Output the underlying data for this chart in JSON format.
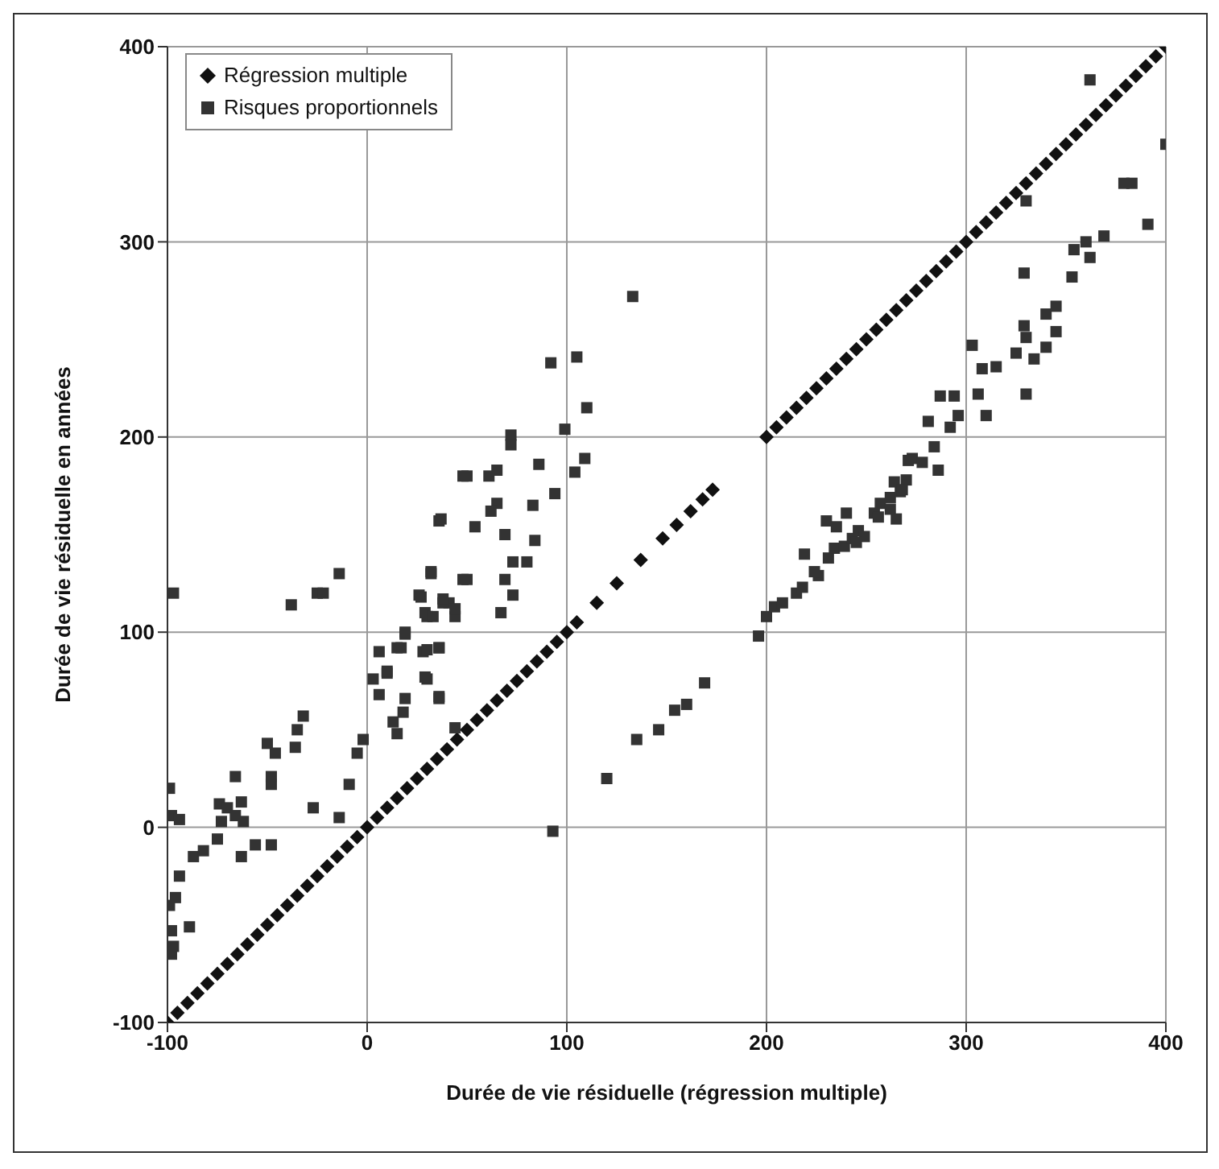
{
  "chart_data": {
    "type": "scatter",
    "xlabel": "Durée de vie résiduelle (régression multiple)",
    "ylabel": "Durée de vie résiduelle en années",
    "xlim": [
      -100,
      400
    ],
    "ylim": [
      -100,
      400
    ],
    "xticks": [
      -100,
      0,
      100,
      200,
      300,
      400
    ],
    "yticks": [
      -100,
      0,
      100,
      200,
      300,
      400
    ],
    "grid": true,
    "legend": "top left",
    "series": [
      {
        "name": "Régression multiple",
        "color": "#111111",
        "marker": "diamond",
        "x": [
          -100,
          -95,
          -90,
          -85,
          -80,
          -75,
          -70,
          -65,
          -60,
          -55,
          -50,
          -45,
          -40,
          -35,
          -30,
          -25,
          -20,
          -15,
          -10,
          -5,
          0,
          5,
          10,
          15,
          20,
          25,
          30,
          35,
          40,
          45,
          50,
          55,
          60,
          65,
          70,
          75,
          80,
          85,
          90,
          95,
          100,
          105,
          115,
          125,
          137,
          148,
          155,
          162,
          168,
          173,
          200,
          205,
          210,
          215,
          220,
          225,
          230,
          235,
          240,
          245,
          250,
          255,
          260,
          265,
          270,
          275,
          280,
          285,
          290,
          295,
          300,
          305,
          310,
          315,
          320,
          325,
          330,
          335,
          340,
          345,
          350,
          355,
          360,
          365,
          370,
          375,
          380,
          385,
          390,
          395,
          400
        ],
        "values": [
          -100,
          -95,
          -90,
          -85,
          -80,
          -75,
          -70,
          -65,
          -60,
          -55,
          -50,
          -45,
          -40,
          -35,
          -30,
          -25,
          -20,
          -15,
          -10,
          -5,
          0,
          5,
          10,
          15,
          20,
          25,
          30,
          35,
          40,
          45,
          50,
          55,
          60,
          65,
          70,
          75,
          80,
          85,
          90,
          95,
          100,
          105,
          115,
          125,
          137,
          148,
          155,
          162,
          168,
          173,
          200,
          205,
          210,
          215,
          220,
          225,
          230,
          235,
          240,
          245,
          250,
          255,
          260,
          265,
          270,
          275,
          280,
          285,
          290,
          295,
          300,
          305,
          310,
          315,
          320,
          325,
          330,
          335,
          340,
          345,
          350,
          355,
          360,
          365,
          370,
          375,
          380,
          385,
          390,
          395,
          400
        ]
      },
      {
        "name": "Risques proportionnels",
        "color": "#333333",
        "marker": "square",
        "x": [
          -97,
          -38,
          -25,
          -22,
          -14,
          -99,
          -98,
          -94,
          -99,
          -96,
          -94,
          -98,
          -98,
          -97,
          -89,
          -87,
          -82,
          -75,
          -74,
          -70,
          -66,
          -73,
          -63,
          -62,
          -66,
          -63,
          -56,
          -48,
          -50,
          -46,
          -48,
          -48,
          -32,
          -35,
          -36,
          -27,
          -9,
          -14,
          -2,
          -5,
          6,
          17,
          19,
          3,
          6,
          10,
          13,
          18,
          15,
          27,
          30,
          41,
          44,
          38,
          32,
          36,
          28,
          36,
          30,
          36,
          48,
          48,
          44,
          133,
          92,
          105,
          110,
          99,
          72,
          72,
          109,
          104,
          86,
          94,
          50,
          61,
          65,
          83,
          65,
          62,
          37,
          54,
          69,
          84,
          73,
          80,
          69,
          73,
          67,
          50,
          32,
          26,
          29,
          38,
          44,
          33,
          19,
          15,
          30,
          36,
          29,
          10,
          36,
          19,
          93,
          120,
          135,
          146,
          154,
          160,
          169,
          196,
          200,
          204,
          208,
          215,
          218,
          226,
          224,
          219,
          231,
          234,
          239,
          243,
          230,
          235,
          240,
          246,
          254,
          265,
          262,
          267,
          270,
          273,
          362,
          400,
          379,
          383,
          391,
          330,
          329,
          330,
          354,
          360,
          369,
          362,
          353,
          345,
          340,
          345,
          329,
          330,
          325,
          334,
          340,
          303,
          308,
          315,
          287,
          294,
          306,
          310,
          296,
          292,
          281,
          284,
          278,
          271,
          286,
          264,
          268,
          257,
          256,
          249,
          245,
          262
        ],
        "values": [
          120,
          114,
          120,
          120,
          130,
          20,
          6,
          4,
          -40,
          -36,
          -25,
          -53,
          -65,
          -61,
          -51,
          -15,
          -12,
          -6,
          12,
          10,
          6,
          3,
          13,
          3,
          26,
          -15,
          -9,
          -9,
          43,
          38,
          26,
          22,
          57,
          50,
          41,
          10,
          22,
          5,
          45,
          38,
          90,
          92,
          99,
          76,
          68,
          79,
          54,
          59,
          48,
          118,
          108,
          115,
          108,
          115,
          130,
          157,
          90,
          92,
          76,
          66,
          180,
          127,
          51,
          272,
          238,
          241,
          215,
          204,
          201,
          196,
          189,
          182,
          186,
          171,
          180,
          180,
          183,
          165,
          166,
          162,
          158,
          154,
          150,
          147,
          136,
          136,
          127,
          119,
          110,
          127,
          131,
          119,
          110,
          117,
          112,
          108,
          100,
          92,
          91,
          92,
          77,
          80,
          67,
          66,
          -2,
          25,
          45,
          50,
          60,
          63,
          74,
          98,
          108,
          113,
          115,
          120,
          123,
          129,
          131,
          140,
          138,
          143,
          144,
          148,
          157,
          154,
          161,
          152,
          161,
          158,
          169,
          172,
          178,
          189,
          383,
          350,
          330,
          330,
          309,
          321,
          284,
          222,
          296,
          300,
          303,
          292,
          282,
          267,
          263,
          254,
          257,
          251,
          243,
          240,
          246,
          247,
          235,
          236,
          221,
          221,
          222,
          211,
          211,
          205,
          208,
          195,
          187,
          188,
          183,
          177,
          173,
          166,
          159,
          149,
          146,
          163
        ]
      }
    ]
  }
}
